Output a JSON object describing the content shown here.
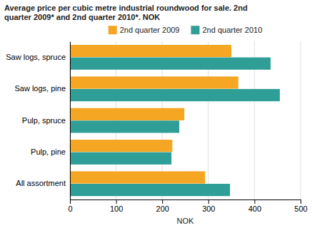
{
  "chart_data": {
    "type": "bar",
    "orientation": "horizontal",
    "title": "Average price per cubic metre industrial roundwood for sale. 2nd\nquarter 2009* and  2nd quarter 2010*. NOK",
    "categories": [
      "Saw logs, spruce",
      "Saw logs, pine",
      "Pulp, spruce",
      "Pulp, pine",
      "All assortment"
    ],
    "series": [
      {
        "name": "2nd quarter 2009",
        "color": "#F5A623",
        "values": [
          350,
          365,
          248,
          222,
          293
        ]
      },
      {
        "name": "2nd quarter 2010",
        "color": "#2E9E96",
        "values": [
          435,
          455,
          237,
          220,
          347
        ]
      }
    ],
    "xlabel": "NOK",
    "xlim": [
      0,
      500
    ],
    "xticks": [
      0,
      100,
      200,
      300,
      400,
      500
    ],
    "grid": true,
    "legend": "top"
  }
}
